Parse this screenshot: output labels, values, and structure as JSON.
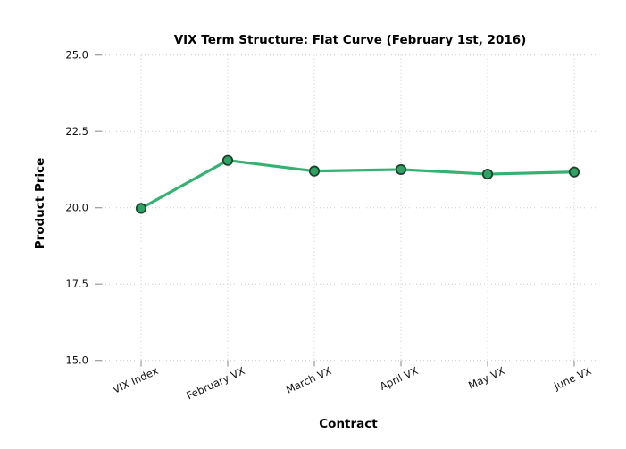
{
  "chart_data": {
    "type": "line",
    "title": "VIX Term Structure: Flat Curve (February 1st, 2016)",
    "xlabel": "Contract",
    "ylabel": "Product Price",
    "categories": [
      "VIX Index",
      "February VX",
      "March VX",
      "April VX",
      "May VX",
      "June VX"
    ],
    "values": [
      19.98,
      21.55,
      21.2,
      21.25,
      21.1,
      21.17
    ],
    "yticks": [
      15.0,
      17.5,
      20.0,
      22.5,
      25.0
    ],
    "ytick_labels": [
      "15.0",
      "17.5",
      "20.0",
      "22.5",
      "25.0"
    ],
    "ylim": [
      15,
      25
    ],
    "grid": "dotted",
    "legend": "none",
    "x_tick_rotation_deg": 25,
    "colors": {
      "line": "#35b273",
      "marker_fill": "#2da263",
      "marker_edge": "#20402e",
      "grid": "#c9c9c9",
      "tick": "#999999",
      "text": "#111111",
      "background": "#ffffff"
    }
  }
}
